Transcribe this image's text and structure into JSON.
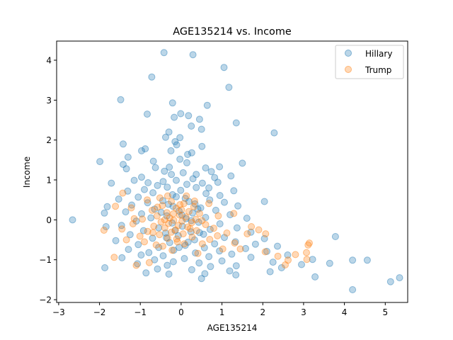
{
  "chart_data": {
    "type": "scatter",
    "title": "AGE135214 vs. Income",
    "xlabel": "AGE135214",
    "ylabel": "Income",
    "xlim": [
      -3.05,
      5.55
    ],
    "ylim": [
      -2.07,
      4.48
    ],
    "xticks": [
      -3,
      -2,
      -1,
      0,
      1,
      2,
      3,
      4,
      5
    ],
    "yticks": [
      -2,
      -1,
      0,
      1,
      2,
      3,
      4
    ],
    "grid": false,
    "legend_position": "top-right",
    "series": [
      {
        "name": "Hillary",
        "color": "#1f77b4",
        "points": [
          [
            -0.42,
            4.19
          ],
          [
            0.29,
            4.14
          ],
          [
            1.05,
            3.82
          ],
          [
            -0.72,
            3.58
          ],
          [
            1.17,
            3.32
          ],
          [
            -1.48,
            3.01
          ],
          [
            -0.21,
            2.93
          ],
          [
            0.64,
            2.87
          ],
          [
            -0.01,
            2.66
          ],
          [
            0.18,
            2.61
          ],
          [
            -0.17,
            2.57
          ],
          [
            -0.83,
            2.65
          ],
          [
            0.45,
            2.52
          ],
          [
            0.25,
            2.35
          ],
          [
            1.35,
            2.43
          ],
          [
            0.5,
            2.27
          ],
          [
            -0.3,
            2.2
          ],
          [
            2.28,
            2.18
          ],
          [
            -0.03,
            2.06
          ],
          [
            -0.38,
            2.07
          ],
          [
            -0.15,
            1.96
          ],
          [
            -1.42,
            1.9
          ],
          [
            -0.88,
            1.78
          ],
          [
            -0.11,
            1.88
          ],
          [
            0.51,
            1.84
          ],
          [
            -0.25,
            1.73
          ],
          [
            -0.97,
            1.73
          ],
          [
            0.26,
            1.68
          ],
          [
            0.16,
            1.64
          ],
          [
            -1.3,
            1.57
          ],
          [
            -0.68,
            1.47
          ],
          [
            -0.03,
            1.52
          ],
          [
            0.14,
            1.43
          ],
          [
            -1.99,
            1.46
          ],
          [
            -1.42,
            1.39
          ],
          [
            0.94,
            1.33
          ],
          [
            1.5,
            1.42
          ],
          [
            -0.63,
            1.31
          ],
          [
            -0.29,
            1.32
          ],
          [
            -0.41,
            1.22
          ],
          [
            0.6,
            1.3
          ],
          [
            -1.34,
            1.28
          ],
          [
            -0.97,
            1.07
          ],
          [
            0.05,
            1.18
          ],
          [
            0.74,
            1.21
          ],
          [
            0.37,
            1.14
          ],
          [
            -0.24,
            1.14
          ],
          [
            0.82,
            1.06
          ],
          [
            1.22,
            1.1
          ],
          [
            -0.12,
            0.99
          ],
          [
            0.29,
            1.03
          ],
          [
            -1.15,
            0.99
          ],
          [
            -0.44,
            0.96
          ],
          [
            -0.81,
            0.93
          ],
          [
            0.52,
            0.92
          ],
          [
            -1.71,
            0.92
          ],
          [
            0.9,
            0.94
          ],
          [
            -0.58,
            0.86
          ],
          [
            0.14,
            0.89
          ],
          [
            -0.34,
            0.82
          ],
          [
            0.68,
            0.8
          ],
          [
            -0.9,
            0.76
          ],
          [
            0.37,
            0.81
          ],
          [
            -1.31,
            0.72
          ],
          [
            -0.01,
            0.74
          ],
          [
            1.29,
            0.73
          ],
          [
            -0.69,
            0.68
          ],
          [
            0.61,
            0.66
          ],
          [
            -0.21,
            0.63
          ],
          [
            0.95,
            0.61
          ],
          [
            -1.05,
            0.57
          ],
          [
            0.1,
            0.54
          ],
          [
            -1.53,
            0.52
          ],
          [
            -0.45,
            0.48
          ],
          [
            0.7,
            0.5
          ],
          [
            2.04,
            0.46
          ],
          [
            -0.82,
            0.43
          ],
          [
            0.34,
            0.4
          ],
          [
            1.06,
            0.44
          ],
          [
            -1.21,
            0.37
          ],
          [
            -0.2,
            0.34
          ],
          [
            1.39,
            0.35
          ],
          [
            -1.81,
            0.33
          ],
          [
            0.48,
            0.3
          ],
          [
            -0.65,
            0.27
          ],
          [
            0.85,
            0.24
          ],
          [
            -0.05,
            0.22
          ],
          [
            -1.36,
            0.2
          ],
          [
            0.28,
            0.17
          ],
          [
            -0.97,
            0.15
          ],
          [
            1.2,
            0.13
          ],
          [
            -1.88,
            0.17
          ],
          [
            -0.35,
            0.1
          ],
          [
            0.6,
            0.06
          ],
          [
            -0.74,
            0.05
          ],
          [
            0.12,
            0.03
          ],
          [
            -2.66,
            0.0
          ],
          [
            1.61,
            0.04
          ],
          [
            -1.1,
            -0.03
          ],
          [
            0.43,
            -0.06
          ],
          [
            -0.22,
            -0.08
          ],
          [
            0.95,
            -0.1
          ],
          [
            -1.46,
            -0.14
          ],
          [
            0.03,
            -0.16
          ],
          [
            -0.55,
            -0.2
          ],
          [
            1.37,
            -0.2
          ],
          [
            -1.84,
            -0.17
          ],
          [
            0.71,
            -0.24
          ],
          [
            -0.92,
            -0.27
          ],
          [
            0.24,
            -0.3
          ],
          [
            1.71,
            -0.31
          ],
          [
            -0.38,
            -0.33
          ],
          [
            -1.25,
            -0.37
          ],
          [
            0.55,
            -0.36
          ],
          [
            3.78,
            -0.42
          ],
          [
            -0.07,
            -0.4
          ],
          [
            1.06,
            -0.44
          ],
          [
            -0.7,
            -0.46
          ],
          [
            2.04,
            -0.47
          ],
          [
            0.33,
            -0.5
          ],
          [
            -1.6,
            -0.52
          ],
          [
            1.33,
            -0.55
          ],
          [
            -0.28,
            -0.57
          ],
          [
            0.82,
            -0.6
          ],
          [
            1.82,
            -0.61
          ],
          [
            -1.05,
            -0.62
          ],
          [
            0.1,
            -0.64
          ],
          [
            2.36,
            -0.66
          ],
          [
            -0.55,
            -0.69
          ],
          [
            0.57,
            -0.7
          ],
          [
            1.58,
            -0.72
          ],
          [
            -1.29,
            -0.74
          ],
          [
            -0.18,
            -0.76
          ],
          [
            0.94,
            -0.78
          ],
          [
            2.1,
            -0.79
          ],
          [
            -0.79,
            -0.82
          ],
          [
            0.35,
            -0.83
          ],
          [
            1.24,
            -0.86
          ],
          [
            -0.98,
            -0.88
          ],
          [
            2.61,
            -0.88
          ],
          [
            -0.44,
            -0.9
          ],
          [
            0.68,
            -0.92
          ],
          [
            1.71,
            -0.94
          ],
          [
            -1.45,
            -0.95
          ],
          [
            0.08,
            -0.97
          ],
          [
            3.22,
            -0.99
          ],
          [
            -0.65,
            -1.0
          ],
          [
            4.2,
            -1.01
          ],
          [
            4.56,
            -1.01
          ],
          [
            1.0,
            -1.03
          ],
          [
            -0.19,
            -1.05
          ],
          [
            2.25,
            -1.06
          ],
          [
            0.44,
            -1.08
          ],
          [
            3.64,
            -1.09
          ],
          [
            -1.07,
            -1.1
          ],
          [
            2.95,
            -1.12
          ],
          [
            -0.34,
            -1.14
          ],
          [
            1.35,
            -1.15
          ],
          [
            0.72,
            -1.17
          ],
          [
            -1.87,
            -1.2
          ],
          [
            2.46,
            -1.2
          ],
          [
            -0.58,
            -1.23
          ],
          [
            0.26,
            -1.25
          ],
          [
            1.19,
            -1.28
          ],
          [
            2.18,
            -1.3
          ],
          [
            -0.86,
            -1.33
          ],
          [
            0.58,
            -1.35
          ],
          [
            -0.3,
            -1.36
          ],
          [
            1.34,
            -1.38
          ],
          [
            3.28,
            -1.43
          ],
          [
            0.5,
            -1.47
          ],
          [
            5.35,
            -1.45
          ],
          [
            5.13,
            -1.55
          ],
          [
            4.2,
            -1.75
          ],
          [
            -0.12,
            0.58
          ],
          [
            0.19,
            0.46
          ],
          [
            -0.31,
            0.39
          ],
          [
            0.41,
            0.27
          ],
          [
            -0.49,
            0.19
          ],
          [
            0.02,
            0.12
          ],
          [
            0.25,
            -0.02
          ],
          [
            -0.15,
            -0.27
          ],
          [
            0.45,
            -0.32
          ],
          [
            -0.36,
            -0.45
          ],
          [
            0.17,
            -0.56
          ],
          [
            -0.05,
            -0.69
          ]
        ]
      },
      {
        "name": "Trump",
        "color": "#ff7f0e",
        "points": [
          [
            -0.24,
            0.46
          ],
          [
            0.07,
            0.41
          ],
          [
            -0.46,
            0.36
          ],
          [
            0.31,
            0.33
          ],
          [
            -0.12,
            0.29
          ],
          [
            -0.71,
            0.24
          ],
          [
            0.19,
            0.21
          ],
          [
            -0.35,
            0.18
          ],
          [
            0.45,
            0.16
          ],
          [
            -0.04,
            0.12
          ],
          [
            -0.59,
            0.1
          ],
          [
            0.12,
            0.07
          ],
          [
            -0.28,
            0.05
          ],
          [
            -0.95,
            0.02
          ],
          [
            0.36,
            0.01
          ],
          [
            -0.18,
            -0.01
          ],
          [
            0.02,
            -0.03
          ],
          [
            -0.49,
            -0.05
          ],
          [
            0.26,
            -0.07
          ],
          [
            -0.31,
            -0.09
          ],
          [
            -1.18,
            -0.1
          ],
          [
            0.6,
            -0.12
          ],
          [
            -0.07,
            -0.14
          ],
          [
            -0.67,
            -0.16
          ],
          [
            0.16,
            -0.18
          ],
          [
            -0.4,
            -0.2
          ],
          [
            0.8,
            -0.21
          ],
          [
            -1.45,
            -0.23
          ],
          [
            -0.14,
            -0.25
          ],
          [
            0.38,
            -0.27
          ],
          [
            -0.82,
            -0.29
          ],
          [
            -0.24,
            -0.31
          ],
          [
            1.12,
            -0.33
          ],
          [
            0.05,
            -0.35
          ],
          [
            -0.53,
            -0.37
          ],
          [
            1.62,
            -0.35
          ],
          [
            -1.01,
            -0.41
          ],
          [
            0.27,
            -0.43
          ],
          [
            -0.33,
            -0.46
          ],
          [
            0.7,
            -0.49
          ],
          [
            -1.34,
            -0.5
          ],
          [
            1.9,
            -0.25
          ],
          [
            2.07,
            -0.35
          ],
          [
            -0.09,
            -0.55
          ],
          [
            0.52,
            -0.6
          ],
          [
            -0.61,
            -0.63
          ],
          [
            2.06,
            -0.8
          ],
          [
            1.45,
            -0.73
          ],
          [
            2.37,
            -0.91
          ],
          [
            3.14,
            -0.58
          ],
          [
            3.07,
            -0.82
          ],
          [
            2.8,
            -0.87
          ],
          [
            3.08,
            -0.99
          ],
          [
            2.55,
            -1.13
          ],
          [
            -0.78,
            -1.07
          ],
          [
            -1.1,
            -1.14
          ],
          [
            -1.64,
            -0.94
          ],
          [
            -1.89,
            -0.26
          ],
          [
            -1.43,
            0.67
          ],
          [
            -1.15,
            0.03
          ],
          [
            -0.52,
            0.55
          ],
          [
            0.13,
            0.6
          ],
          [
            0.68,
            0.41
          ],
          [
            0.91,
            0.1
          ],
          [
            -0.83,
            0.5
          ],
          [
            -1.22,
            0.3
          ],
          [
            1.72,
            -0.17
          ],
          [
            1.31,
            -0.58
          ],
          [
            -0.22,
            -0.76
          ],
          [
            0.41,
            -0.84
          ],
          [
            -0.4,
            0.0
          ],
          [
            0.01,
            0.25
          ],
          [
            -0.19,
            0.15
          ],
          [
            0.22,
            -0.22
          ],
          [
            -0.58,
            0.32
          ],
          [
            0.51,
            -0.02
          ],
          [
            -0.9,
            -0.55
          ],
          [
            -0.45,
            -0.66
          ],
          [
            0.89,
            -0.4
          ],
          [
            1.29,
            0.16
          ],
          [
            -1.61,
            0.34
          ],
          [
            -0.11,
            -0.48
          ],
          [
            0.33,
            0.47
          ],
          [
            -0.33,
            0.6
          ],
          [
            3.11,
            -0.63
          ],
          [
            2.62,
            -1.01
          ],
          [
            1.02,
            -0.73
          ],
          [
            -0.03,
            0.38
          ],
          [
            -0.69,
            -0.32
          ],
          [
            0.08,
            -0.6
          ]
        ]
      }
    ]
  }
}
